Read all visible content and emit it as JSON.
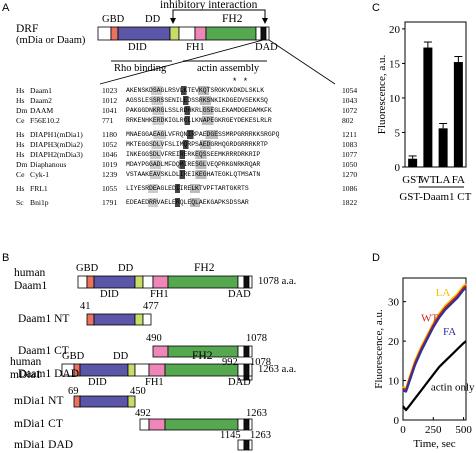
{
  "panels": {
    "a": "A",
    "b": "B",
    "c": "C",
    "d": "D"
  },
  "panel_a": {
    "title": "inhibitory interaction",
    "protein_label_1": "DRF",
    "protein_label_2": "(mDia or Daam)",
    "domains_top": [
      "GBD",
      "DD",
      "FH2"
    ],
    "domains_bottom": [
      "DID",
      "FH1",
      "DAD"
    ],
    "rho_binding": "Rho binding",
    "actin_assembly": "actin assembly",
    "stars": "*     *",
    "alignment": [
      {
        "species": "Hs",
        "name": "Daam1",
        "start": "1023",
        "seq": "AKENSKDSAGLRSVLKTEVKQTSRGKVKDKDLSKLK",
        "end": "1054"
      },
      {
        "species": "Hs",
        "name": "Daam2",
        "start": "1012",
        "seq": "AGSSLESSRSSENILEDSSRKSNKIKDGEDVSEKKSQ",
        "end": "1043"
      },
      {
        "species": "Dm",
        "name": "DAAM",
        "start": "1041",
        "seq": "PAKGGDNKRGLSSLRDHKRLGSEGLEKAMDGEDAMKFK",
        "end": "1072"
      },
      {
        "species": "Ce",
        "name": "F56E10.2",
        "start": "771",
        "seq": "RRKENHKERDKIGLRCLLKNAPEGKRGEYDEKESLRLR",
        "end": "802"
      },
      {
        "species": "Hs",
        "name": "DIAPH1(mDia1)",
        "start": "1180",
        "seq": "MNAEGGAEAGLVFRQNIRPAEDGESSMRPGRRRKKSRGPQ",
        "end": "1211"
      },
      {
        "species": "Hs",
        "name": "DIAPH3(mDia2)",
        "start": "1052",
        "seq": "MKTEGGSDLVFSLIMQRPSAEDGRHQGRDGRRRKRTP",
        "end": "1083"
      },
      {
        "species": "Hs",
        "name": "DIAPH2(mDia3)",
        "start": "1046",
        "seq": "INKEGGSDLVFREIRERKEQSSEEMKRRRDRKRIP",
        "end": "1077"
      },
      {
        "species": "Dm",
        "name": "Diaphanous",
        "start": "1019",
        "seq": "MDAYPGGADLMFDQMIRESGLVEQPRKGNRKRQAR",
        "end": "1050"
      },
      {
        "species": "Ce",
        "name": "Cyk-1",
        "start": "1239",
        "seq": "VSTAAKEAVSKLDLIREIKEGHATEGKLQTMSATN",
        "end": "1270"
      },
      {
        "species": "Hs",
        "name": "FRL1",
        "start": "1055",
        "seq": "LIYESRDEAGLEDIIRELKTVPFTARTGKRTS",
        "end": "1086"
      },
      {
        "species": "Sc",
        "name": "Bni1p",
        "start": "1791",
        "seq": "EDEAEDRRVAELERQLEQLAEKGAPKSDSSAR",
        "end": "1822"
      }
    ]
  },
  "panel_b": {
    "human_daam1_1": "human",
    "human_daam1_2": "Daam1",
    "daam1_domains_top": [
      "GBD",
      "DD",
      "FH2"
    ],
    "daam1_domains_bottom": [
      "DID",
      "FH1",
      "DAD"
    ],
    "daam1_length": "1078 a.a.",
    "daam1_nt_label": "Daam1 NT",
    "daam1_nt_start": "41",
    "daam1_nt_end": "477",
    "daam1_ct_label": "Daam1 CT",
    "daam1_ct_start": "490",
    "daam1_ct_end": "1078",
    "daam1_dad_label": "Daam1 DAD",
    "daam1_dad_start": "992",
    "daam1_dad_end": "1078",
    "human_mdia1_1": "human",
    "human_mdia1_2": "mDia1",
    "mdia1_domains_top": [
      "GBD",
      "DD",
      "FH2"
    ],
    "mdia1_domains_bottom": [
      "DID",
      "FH1",
      "DAD"
    ],
    "mdia1_length": "1263 a.a.",
    "mdia1_nt_label": "mDia1 NT",
    "mdia1_nt_start": "69",
    "mdia1_nt_end": "450",
    "mdia1_ct_label": "mDia1 CT",
    "mdia1_ct_start": "492",
    "mdia1_ct_end": "1263",
    "mdia1_dad_label": "mDia1 DAD",
    "mdia1_dad_start": "1145",
    "mdia1_dad_end": "1263"
  },
  "colors": {
    "gbd": "#e8735e",
    "dd": "#5b56a8",
    "did": "#5b56a8",
    "dd_green": "#c8dc6a",
    "fh1": "#ee86b8",
    "fh2": "#55a850",
    "dad": "#111111",
    "wt": "#d81e20",
    "la": "#f0c800",
    "fa": "#30309a",
    "actin": "#000000"
  },
  "chart_data": [
    {
      "type": "bar",
      "panel": "C",
      "categories": [
        "GST",
        "WT",
        "LA",
        "FA"
      ],
      "values": [
        1.2,
        17.3,
        5.6,
        15.2
      ],
      "errors": [
        0.4,
        0.8,
        0.7,
        0.8
      ],
      "ylabel": "Fluorescence, a.u.",
      "group_label": "GST-Daam1 CT",
      "ylim": [
        0,
        21
      ],
      "yticks": [
        0,
        5,
        10,
        15,
        20
      ]
    },
    {
      "type": "line",
      "panel": "D",
      "xlabel": "Time, sec",
      "ylabel": "Fluorescence, a.u.",
      "xlim": [
        0,
        520
      ],
      "ylim": [
        0,
        36
      ],
      "xticks": [
        0,
        250,
        500
      ],
      "yticks": [
        0,
        10,
        20,
        30
      ],
      "series": [
        {
          "name": "LA",
          "color": "#f0c800",
          "x": [
            0,
            25,
            50,
            100,
            150,
            200,
            250,
            300,
            350,
            400,
            450,
            500,
            520
          ],
          "y": [
            8.5,
            7.8,
            10.5,
            15,
            18.5,
            21.5,
            24.5,
            27,
            29,
            30.5,
            32,
            34,
            34.5
          ]
        },
        {
          "name": "WT",
          "color": "#d81e20",
          "x": [
            0,
            25,
            50,
            100,
            150,
            200,
            250,
            300,
            350,
            400,
            450,
            500,
            520
          ],
          "y": [
            8,
            7.5,
            10,
            14.5,
            18,
            21,
            24,
            26.5,
            28.5,
            30,
            31.5,
            33.5,
            34
          ]
        },
        {
          "name": "FA",
          "color": "#30309a",
          "x": [
            0,
            25,
            50,
            100,
            150,
            200,
            250,
            300,
            350,
            400,
            450,
            500,
            520
          ],
          "y": [
            7.5,
            7.2,
            9.5,
            14,
            17.5,
            20.5,
            23.5,
            26,
            28,
            29.5,
            31,
            33,
            33.5
          ]
        },
        {
          "name": "actin only",
          "color": "#000000",
          "x": [
            0,
            25,
            50,
            100,
            150,
            200,
            250,
            300,
            350,
            400,
            450,
            500,
            520
          ],
          "y": [
            3.5,
            2.5,
            3.5,
            5.5,
            7.5,
            9.5,
            11.5,
            13.5,
            15,
            16.5,
            18,
            19.5,
            20
          ]
        }
      ]
    }
  ]
}
